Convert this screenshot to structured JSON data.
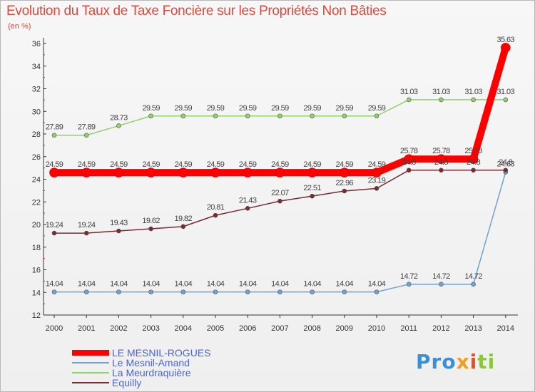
{
  "header": {
    "title": "Evolution du Taux de Taxe Foncière sur les Propriétés Non Bâties",
    "subtitle": "(en %)"
  },
  "logo": {
    "part1": "Pro",
    "part2": "x",
    "part3": "i",
    "part4": "ti"
  },
  "chart_data": {
    "type": "line",
    "title": "Evolution du Taux de Taxe Foncière sur les Propriétés Non Bâties",
    "ylabel": "(en %)",
    "xlabel": "",
    "x": [
      "2000",
      "2001",
      "2002",
      "2003",
      "2004",
      "2005",
      "2006",
      "2007",
      "2008",
      "2009",
      "2010",
      "2011",
      "2012",
      "2013",
      "2014"
    ],
    "ylim": [
      12,
      36
    ],
    "yticks": [
      12,
      14,
      16,
      18,
      20,
      22,
      24,
      26,
      28,
      30,
      32,
      34,
      36
    ],
    "grid": false,
    "legend_position": "bottom-left",
    "series": [
      {
        "name": "LE MESNIL-ROGUES",
        "color": "#ff0000",
        "emphasis": true,
        "values": [
          24.59,
          24.59,
          24.59,
          24.59,
          24.59,
          24.59,
          24.59,
          24.59,
          24.59,
          24.59,
          24.59,
          25.78,
          25.78,
          25.78,
          35.63
        ],
        "labels": [
          "24.59",
          "24.59",
          "24.59",
          "24.59",
          "24.59",
          "24.59",
          "24.59",
          "24.59",
          "24.59",
          "24.59",
          "24.59",
          "25.78",
          "25.78",
          "25.78",
          "35.63"
        ]
      },
      {
        "name": "Le Mesnil-Amand",
        "color": "#6fa3d2",
        "emphasis": false,
        "values": [
          14.04,
          14.04,
          14.04,
          14.04,
          14.04,
          14.04,
          14.04,
          14.04,
          14.04,
          14.04,
          14.04,
          14.72,
          14.72,
          14.72,
          24.63
        ],
        "labels": [
          "14.04",
          "14.04",
          "14.04",
          "14.04",
          "14.04",
          "14.04",
          "14.04",
          "14.04",
          "14.04",
          "14.04",
          "14.04",
          "14.72",
          "14.72",
          "14.72",
          "24.63"
        ]
      },
      {
        "name": "La Meurdraquière",
        "color": "#8fd26b",
        "emphasis": false,
        "values": [
          27.89,
          27.89,
          28.73,
          29.59,
          29.59,
          29.59,
          29.59,
          29.59,
          29.59,
          29.59,
          29.59,
          31.03,
          31.03,
          31.03,
          31.03
        ],
        "labels": [
          "27.89",
          "27.89",
          "28.73",
          "29.59",
          "29.59",
          "29.59",
          "29.59",
          "29.59",
          "29.59",
          "29.59",
          "29.59",
          "31.03",
          "31.03",
          "31.03",
          "31.03"
        ]
      },
      {
        "name": "Equilly",
        "color": "#7a2a32",
        "emphasis": false,
        "values": [
          19.24,
          19.24,
          19.43,
          19.62,
          19.82,
          20.81,
          21.43,
          22.07,
          22.51,
          22.96,
          23.19,
          24.8,
          24.8,
          24.8,
          24.8
        ],
        "labels": [
          "19.24",
          "19.24",
          "19.43",
          "19.62",
          "19.82",
          "20.81",
          "21.43",
          "22.07",
          "22.51",
          "22.96",
          "23.19",
          "24.8",
          "24.8",
          "24.8",
          "24.8"
        ]
      }
    ]
  }
}
